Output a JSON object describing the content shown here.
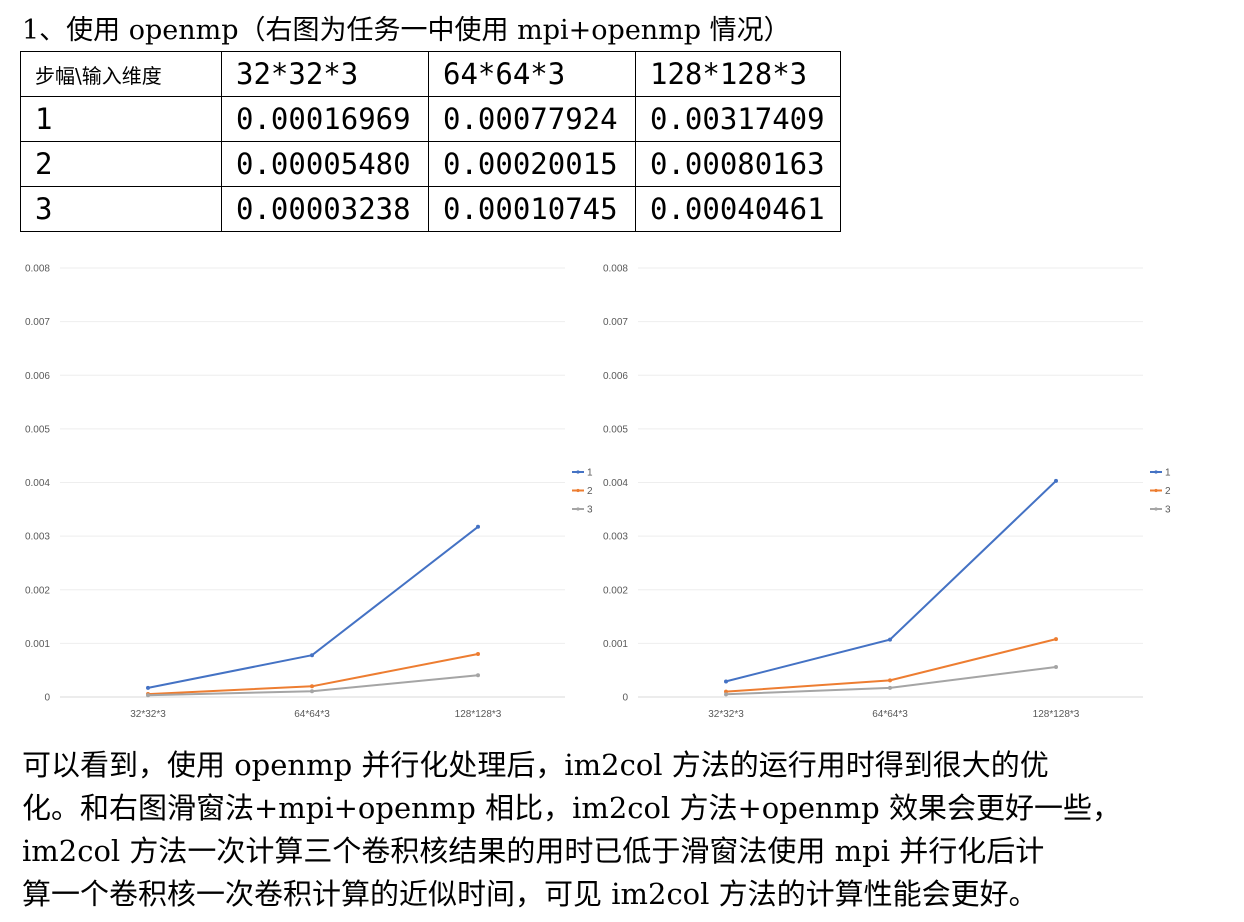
{
  "heading": "1、使用 openmp（右图为任务一中使用 mpi+openmp 情况）",
  "table": {
    "corner_label": "步幅\\输入维度",
    "columns": [
      "32*32*3",
      "64*64*3",
      "128*128*3"
    ],
    "rows": [
      {
        "stride": "1",
        "values": [
          "0.00016969",
          "0.00077924",
          "0.00317409"
        ]
      },
      {
        "stride": "2",
        "values": [
          "0.00005480",
          "0.00020015",
          "0.00080163"
        ]
      },
      {
        "stride": "3",
        "values": [
          "0.00003238",
          "0.00010745",
          "0.00040461"
        ]
      }
    ]
  },
  "chart_data": [
    {
      "type": "line",
      "categories": [
        "32*32*3",
        "64*64*3",
        "128*128*3"
      ],
      "series": [
        {
          "name": "1",
          "color": "#4472C4",
          "values": [
            0.00016969,
            0.00077924,
            0.00317409
          ]
        },
        {
          "name": "2",
          "color": "#ED7D31",
          "values": [
            5.48e-05,
            0.00020015,
            0.00080163
          ]
        },
        {
          "name": "3",
          "color": "#A5A5A5",
          "values": [
            3.238e-05,
            0.00010745,
            0.00040461
          ]
        }
      ],
      "yticks": [
        "0",
        "0.001",
        "0.002",
        "0.003",
        "0.004",
        "0.005",
        "0.006",
        "0.007",
        "0.008"
      ],
      "ylim": [
        0,
        0.008
      ],
      "grid": true,
      "legend": "right"
    },
    {
      "type": "line",
      "categories": [
        "32*32*3",
        "64*64*3",
        "128*128*3"
      ],
      "series": [
        {
          "name": "1",
          "color": "#4472C4",
          "values": [
            0.00029,
            0.00107,
            0.00403
          ]
        },
        {
          "name": "2",
          "color": "#ED7D31",
          "values": [
            0.0001,
            0.00031,
            0.00108
          ]
        },
        {
          "name": "3",
          "color": "#A5A5A5",
          "values": [
            5e-05,
            0.00017,
            0.00056
          ]
        }
      ],
      "yticks": [
        "0",
        "0.001",
        "0.002",
        "0.003",
        "0.004",
        "0.005",
        "0.006",
        "0.007",
        "0.008"
      ],
      "ylim": [
        0,
        0.008
      ],
      "grid": true,
      "legend": "right"
    }
  ],
  "paragraph": [
    "可以看到，使用 openmp 并行化处理后，im2col 方法的运行用时得到很大的优",
    "化。和右图滑窗法+mpi+openmp 相比，im2col 方法+openmp 效果会更好一些，",
    "im2col 方法一次计算三个卷积核结果的用时已低于滑窗法使用 mpi 并行化后计",
    "算一个卷积核一次卷积计算的近似时间，可见 im2col 方法的计算性能会更好。"
  ]
}
